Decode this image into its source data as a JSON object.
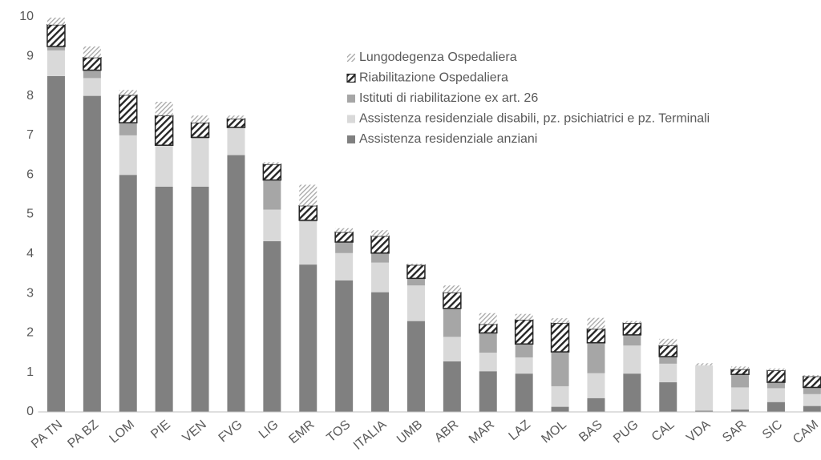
{
  "chart_data": {
    "type": "stacked_bar",
    "categories": [
      "PA TN",
      "PA BZ",
      "LOM",
      "PIE",
      "VEN",
      "FVG",
      "LIG",
      "EMR",
      "TOS",
      "ITALIA",
      "UMB",
      "ABR",
      "MAR",
      "LAZ",
      "MOL",
      "BAS",
      "PUG",
      "CAL",
      "VDA",
      "SAR",
      "SIC",
      "CAM"
    ],
    "series": [
      {
        "name": "Assistenza residenziale anziani",
        "color": "#808080",
        "pattern": "none",
        "values": [
          8.5,
          8.0,
          6.0,
          5.7,
          5.7,
          6.5,
          4.32,
          3.73,
          3.33,
          3.03,
          2.3,
          1.28,
          1.03,
          0.97,
          0.13,
          0.35,
          0.97,
          0.75,
          0.03,
          0.06,
          0.25,
          0.15
        ]
      },
      {
        "name": "Assistenza residenziale disabili, pz. psichiatrici e pz. Terminali",
        "color": "#d9d9d9",
        "pattern": "none",
        "values": [
          0.65,
          0.45,
          1.0,
          1.05,
          1.22,
          0.7,
          0.8,
          1.09,
          0.69,
          0.75,
          0.9,
          0.62,
          0.47,
          0.41,
          0.52,
          0.63,
          0.71,
          0.47,
          1.15,
          0.56,
          0.35,
          0.3
        ]
      },
      {
        "name": "Istituti di riabilitazione ex art. 26",
        "color": "#a6a6a6",
        "pattern": "none",
        "values": [
          0.1,
          0.2,
          0.32,
          0,
          0.03,
          0,
          0.75,
          0.03,
          0.28,
          0.24,
          0.18,
          0.72,
          0.5,
          0.34,
          0.87,
          0.77,
          0.27,
          0.18,
          0,
          0.33,
          0.15,
          0.17
        ]
      },
      {
        "name": "Riabilitazione Ospedaliera",
        "color": "#262626",
        "pattern": "dense-hatch",
        "values": [
          0.55,
          0.32,
          0.7,
          0.75,
          0.37,
          0.22,
          0.4,
          0.37,
          0.25,
          0.43,
          0.34,
          0.4,
          0.22,
          0.61,
          0.73,
          0.35,
          0.3,
          0.28,
          0,
          0.13,
          0.3,
          0.28
        ]
      },
      {
        "name": "Lungodegenza Ospedaliera",
        "color": "#a6a6a6",
        "pattern": "light-hatch",
        "values": [
          0.18,
          0.28,
          0.13,
          0.35,
          0.18,
          0.08,
          0.05,
          0.53,
          0.1,
          0.15,
          0.03,
          0.18,
          0.28,
          0.15,
          0.12,
          0.28,
          0.05,
          0.17,
          0.05,
          0.07,
          0.05,
          0.03
        ]
      }
    ],
    "ylim": [
      0,
      10
    ],
    "yticks": [
      0,
      1,
      2,
      3,
      4,
      5,
      6,
      7,
      8,
      9,
      10
    ],
    "grid": false,
    "legend": "top-right"
  }
}
